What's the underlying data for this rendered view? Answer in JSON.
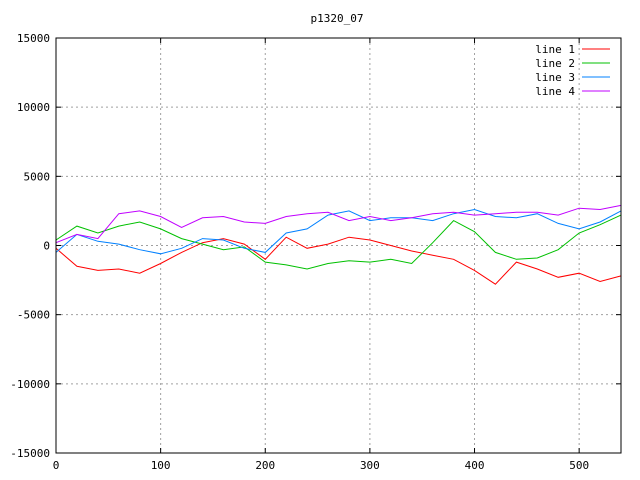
{
  "chart_data": {
    "type": "line",
    "title": "p1320_07",
    "xlabel": "",
    "ylabel": "",
    "xlim": [
      0,
      540
    ],
    "ylim": [
      -15000,
      15000
    ],
    "x_ticks": [
      0,
      100,
      200,
      300,
      400,
      500
    ],
    "y_ticks": [
      -15000,
      -10000,
      -5000,
      0,
      5000,
      10000,
      15000
    ],
    "grid": true,
    "legend_position": "top-right",
    "x": [
      0,
      20,
      40,
      60,
      80,
      100,
      120,
      140,
      160,
      180,
      200,
      220,
      240,
      260,
      280,
      300,
      320,
      340,
      360,
      380,
      400,
      420,
      440,
      460,
      480,
      500,
      520,
      540
    ],
    "series": [
      {
        "name": "line 1",
        "color": "#ff0000",
        "values": [
          -200,
          -1500,
          -1800,
          -1700,
          -2000,
          -1300,
          -500,
          200,
          500,
          100,
          -1000,
          600,
          -200,
          100,
          600,
          400,
          0,
          -400,
          -700,
          -1000,
          -1800,
          -2800,
          -1200,
          -1700,
          -2300,
          -2000,
          -2600,
          -2200
        ]
      },
      {
        "name": "line 2",
        "color": "#00c000",
        "values": [
          400,
          1400,
          900,
          1400,
          1700,
          1200,
          500,
          100,
          -300,
          -100,
          -1200,
          -1400,
          -1700,
          -1300,
          -1100,
          -1200,
          -1000,
          -1300,
          200,
          1800,
          1000,
          -500,
          -1000,
          -900,
          -300,
          900,
          1500,
          2200
        ]
      },
      {
        "name": "line 3",
        "color": "#0080ff",
        "values": [
          -500,
          800,
          300,
          100,
          -300,
          -600,
          -200,
          500,
          400,
          -200,
          -500,
          900,
          1200,
          2200,
          2500,
          1800,
          2000,
          2000,
          1800,
          2300,
          2600,
          2100,
          2000,
          2300,
          1600,
          1200,
          1700,
          2500
        ]
      },
      {
        "name": "line 4",
        "color": "#c000ff",
        "values": [
          200,
          800,
          500,
          2300,
          2500,
          2100,
          1300,
          2000,
          2100,
          1700,
          1600,
          2100,
          2300,
          2400,
          1800,
          2100,
          1800,
          2000,
          2300,
          2400,
          2200,
          2300,
          2400,
          2400,
          2200,
          2700,
          2600,
          2900
        ]
      }
    ]
  }
}
